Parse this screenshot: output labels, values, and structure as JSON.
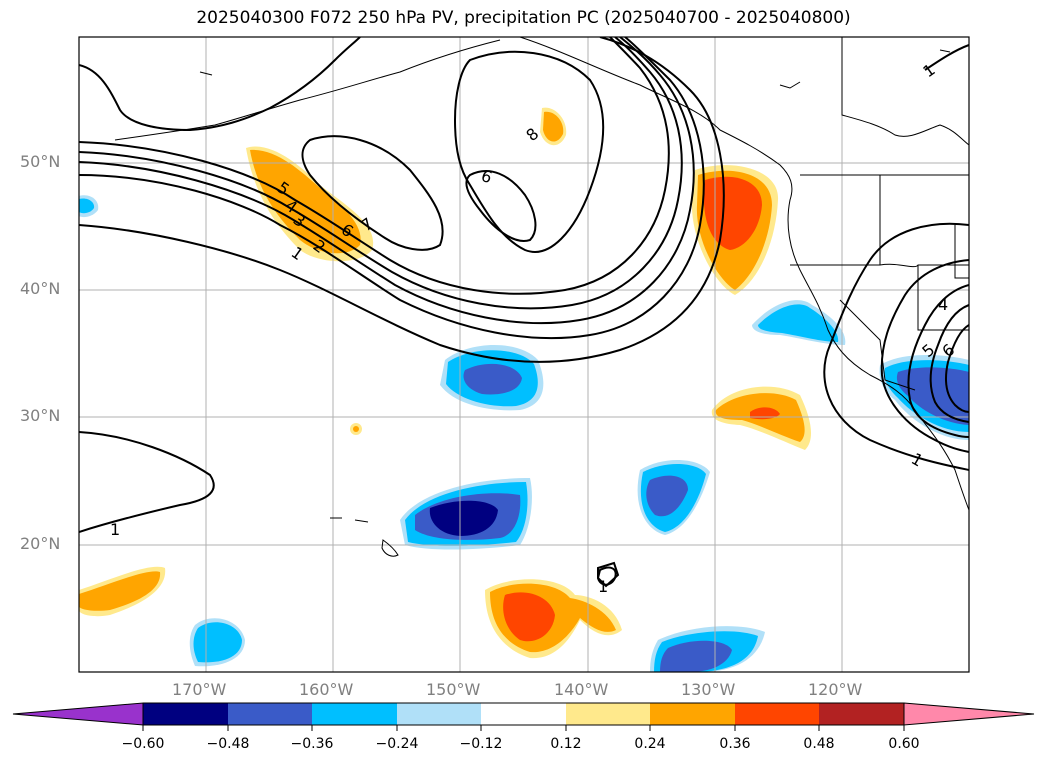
{
  "title": "2025040300 F072 250 hPa PV, precipitation PC (2025040700 - 2025040800)",
  "map": {
    "lon_range": [
      -180,
      -110
    ],
    "lat_range": [
      10,
      60
    ],
    "lon_ticks": [
      "170°W",
      "160°W",
      "150°W",
      "140°W",
      "130°W",
      "120°W"
    ],
    "lat_ticks": [
      "20°N",
      "30°N",
      "40°N",
      "50°N"
    ],
    "gridlines": true
  },
  "colorbar": {
    "ticks": [
      "−0.60",
      "−0.48",
      "−0.36",
      "−0.24",
      "−0.12",
      "0.12",
      "0.24",
      "0.36",
      "0.48",
      "0.60"
    ],
    "colors": [
      "#9932cc",
      "#000080",
      "#3a5bc8",
      "#00bfff",
      "#b0e0f8",
      "#ffffff",
      "#ffe98c",
      "#ffa500",
      "#ff4500",
      "#b22222",
      "#ff88aa"
    ]
  },
  "contour_labels": [
    "1",
    "2",
    "3",
    "4",
    "5",
    "6",
    "7",
    "8",
    "6",
    "1",
    "1",
    "1",
    "4",
    "5",
    "6",
    "1"
  ],
  "precip_colors": {
    "pos1": "#ffe98c",
    "pos2": "#ffa500",
    "pos3": "#ff4500",
    "neg1": "#b0e0f8",
    "neg2": "#00bfff",
    "neg3": "#3a5bc8",
    "neg4": "#000080"
  }
}
